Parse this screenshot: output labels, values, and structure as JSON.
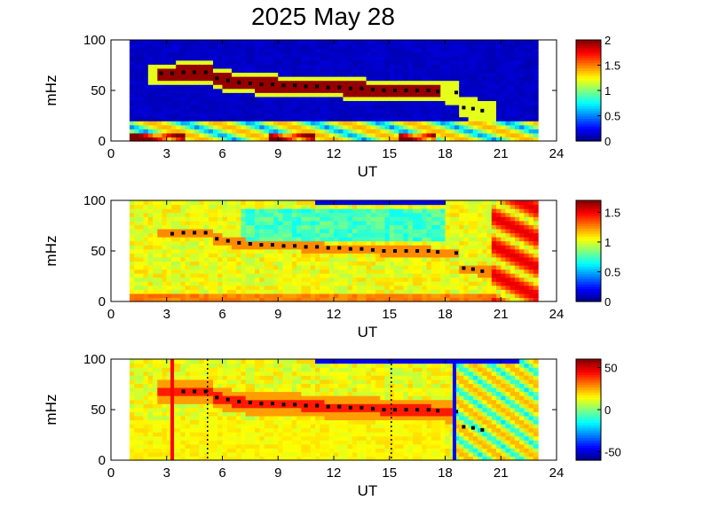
{
  "title": "2025 May 28",
  "chart_data": [
    {
      "type": "heatmap",
      "name": "panel-1",
      "xlabel": "UT",
      "ylabel": "mHz",
      "xlim": [
        0,
        24
      ],
      "ylim": [
        0,
        100
      ],
      "data_x_range": [
        1,
        23
      ],
      "xticks": [
        "0",
        "3",
        "6",
        "9",
        "12",
        "15",
        "18",
        "21",
        "24"
      ],
      "yticks": [
        "0",
        "50",
        "100"
      ],
      "colorbar": {
        "range": [
          0,
          2
        ],
        "ticks": [
          "0",
          "0.5",
          "1",
          "1.5",
          "2"
        ]
      },
      "ridge": {
        "x": [
          2.7,
          3.3,
          3.9,
          4.5,
          5.1,
          5.7,
          6.3,
          6.9,
          7.5,
          8.1,
          8.7,
          9.3,
          9.9,
          10.5,
          11.1,
          11.7,
          12.3,
          12.9,
          13.5,
          14.1,
          14.7,
          15.3,
          15.9,
          16.5,
          17.1,
          17.6,
          18.6,
          19.0,
          19.5,
          20.0
        ],
        "y": [
          67,
          67,
          68,
          68,
          68,
          62,
          60,
          58,
          57,
          56,
          56,
          55,
          55,
          54,
          54,
          53,
          53,
          52,
          52,
          51,
          50,
          50,
          50,
          50,
          50,
          49,
          48,
          33,
          32,
          30
        ]
      }
    },
    {
      "type": "heatmap",
      "name": "panel-2",
      "xlabel": "UT",
      "ylabel": "mHz",
      "xlim": [
        0,
        24
      ],
      "ylim": [
        0,
        100
      ],
      "data_x_range": [
        1,
        23
      ],
      "xticks": [
        "0",
        "3",
        "6",
        "9",
        "12",
        "15",
        "18",
        "21",
        "24"
      ],
      "yticks": [
        "0",
        "50",
        "100"
      ],
      "colorbar": {
        "range": [
          0,
          1.7
        ],
        "ticks": [
          "0",
          "0.5",
          "1",
          "1.5"
        ]
      },
      "ridge": {
        "x": [
          3.3,
          3.9,
          4.5,
          5.1,
          5.7,
          6.3,
          6.9,
          7.5,
          8.1,
          8.7,
          9.3,
          9.9,
          10.5,
          11.1,
          11.7,
          12.3,
          12.9,
          13.5,
          14.1,
          14.7,
          15.3,
          15.9,
          16.5,
          17.1,
          17.6,
          18.6,
          19.0,
          19.5,
          20.0
        ],
        "y": [
          67,
          68,
          68,
          68,
          62,
          60,
          58,
          57,
          56,
          56,
          55,
          55,
          54,
          54,
          53,
          53,
          52,
          52,
          51,
          50,
          50,
          50,
          50,
          50,
          49,
          48,
          33,
          32,
          30
        ]
      }
    },
    {
      "type": "heatmap",
      "name": "panel-3",
      "xlabel": "UT",
      "ylabel": "mHz",
      "xlim": [
        0,
        24
      ],
      "ylim": [
        0,
        100
      ],
      "data_x_range": [
        1,
        23
      ],
      "xticks": [
        "0",
        "3",
        "6",
        "9",
        "12",
        "15",
        "18",
        "21",
        "24"
      ],
      "yticks": [
        "0",
        "50",
        "100"
      ],
      "colorbar": {
        "range": [
          -60,
          60
        ],
        "ticks": [
          "-50",
          "0",
          "50"
        ]
      },
      "ridge": {
        "x": [
          3.3,
          3.9,
          4.5,
          5.1,
          5.7,
          6.3,
          6.9,
          7.5,
          8.1,
          8.7,
          9.3,
          9.9,
          10.5,
          11.1,
          11.7,
          12.3,
          12.9,
          13.5,
          14.1,
          14.7,
          15.3,
          15.9,
          16.5,
          17.1,
          17.6,
          18.6,
          19.0,
          19.5,
          20.0
        ],
        "y": [
          67,
          68,
          68,
          68,
          62,
          60,
          58,
          57,
          56,
          56,
          55,
          55,
          54,
          54,
          53,
          53,
          52,
          52,
          51,
          50,
          50,
          50,
          50,
          50,
          49,
          48,
          33,
          32,
          30
        ]
      },
      "markers": [
        {
          "x": 3.3,
          "style": "solid",
          "color": "#ff0000"
        },
        {
          "x": 5.2,
          "style": "dotted",
          "color": "#000000"
        },
        {
          "x": 15.1,
          "style": "dotted",
          "color": "#000000"
        },
        {
          "x": 18.5,
          "style": "solid",
          "color": "#0000ff"
        }
      ]
    }
  ]
}
